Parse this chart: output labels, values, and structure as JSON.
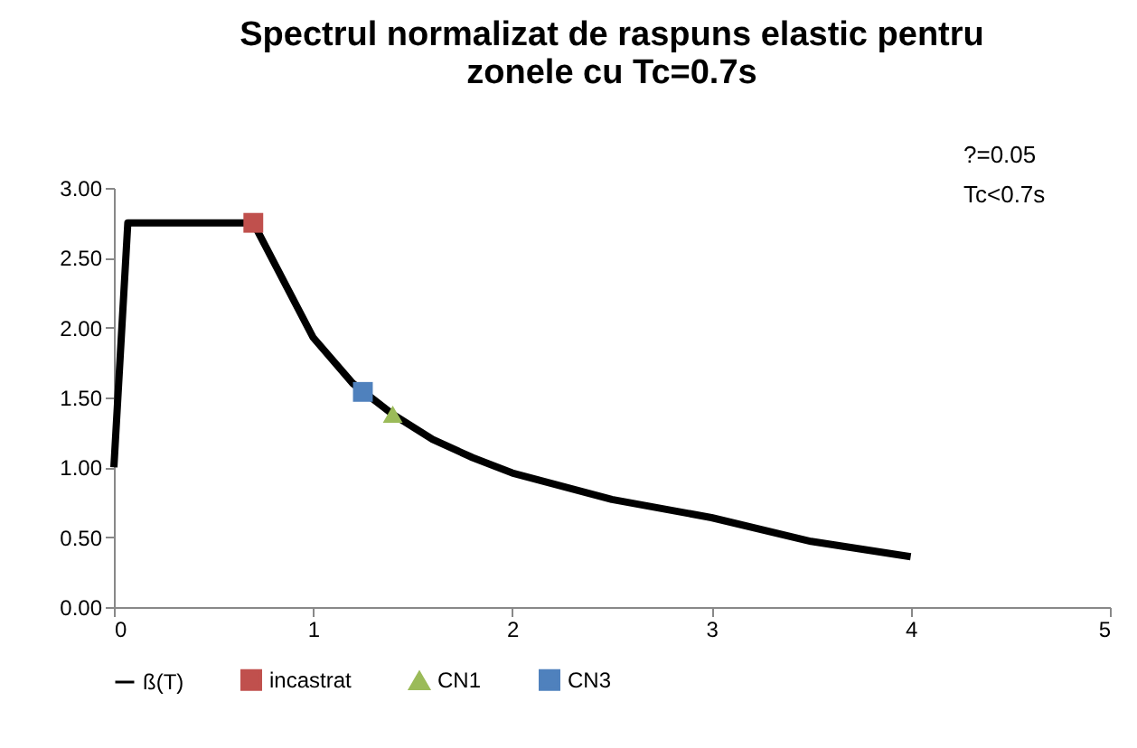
{
  "chart_data": {
    "type": "line",
    "title": "Spectrul normalizat de raspuns elastic pentru zonele cu Tc=0.7s",
    "annotations": [
      "?=0.05",
      "Tc<0.7s"
    ],
    "xlim": [
      0,
      5
    ],
    "xticks": [
      0,
      1,
      2,
      3,
      4,
      5
    ],
    "ylim": [
      0,
      3
    ],
    "yticks": [
      {
        "value": 0,
        "label": "0.00"
      },
      {
        "value": 0.5,
        "label": "0.50"
      },
      {
        "value": 1,
        "label": "1.00"
      },
      {
        "value": 1.5,
        "label": "1.50"
      },
      {
        "value": 2,
        "label": "2.00"
      },
      {
        "value": 2.5,
        "label": "2.50"
      },
      {
        "value": 3,
        "label": "3.00"
      }
    ],
    "grid": false,
    "legend": "bottom",
    "series": [
      {
        "name": "ß(T)",
        "type": "line",
        "color": "#000000",
        "marker": "none",
        "x": [
          0,
          0.07,
          0.7,
          1,
          1.2,
          1.4,
          1.6,
          1.8,
          2,
          2.5,
          3,
          3.5,
          4
        ],
        "values": [
          1.0,
          2.75,
          2.75,
          1.93,
          1.6,
          1.38,
          1.2,
          1.07,
          0.96,
          0.77,
          0.64,
          0.47,
          0.36
        ]
      },
      {
        "name": "incastrat",
        "type": "scatter",
        "color": "#c0504d",
        "marker": "square",
        "x": [
          0.7
        ],
        "values": [
          2.75
        ]
      },
      {
        "name": "CN1",
        "type": "scatter",
        "color": "#9bbb59",
        "marker": "triangle",
        "x": [
          1.4
        ],
        "values": [
          1.38
        ]
      },
      {
        "name": "CN3",
        "type": "scatter",
        "color": "#4f81bd",
        "marker": "square",
        "x": [
          1.25
        ],
        "values": [
          1.54
        ]
      }
    ]
  }
}
